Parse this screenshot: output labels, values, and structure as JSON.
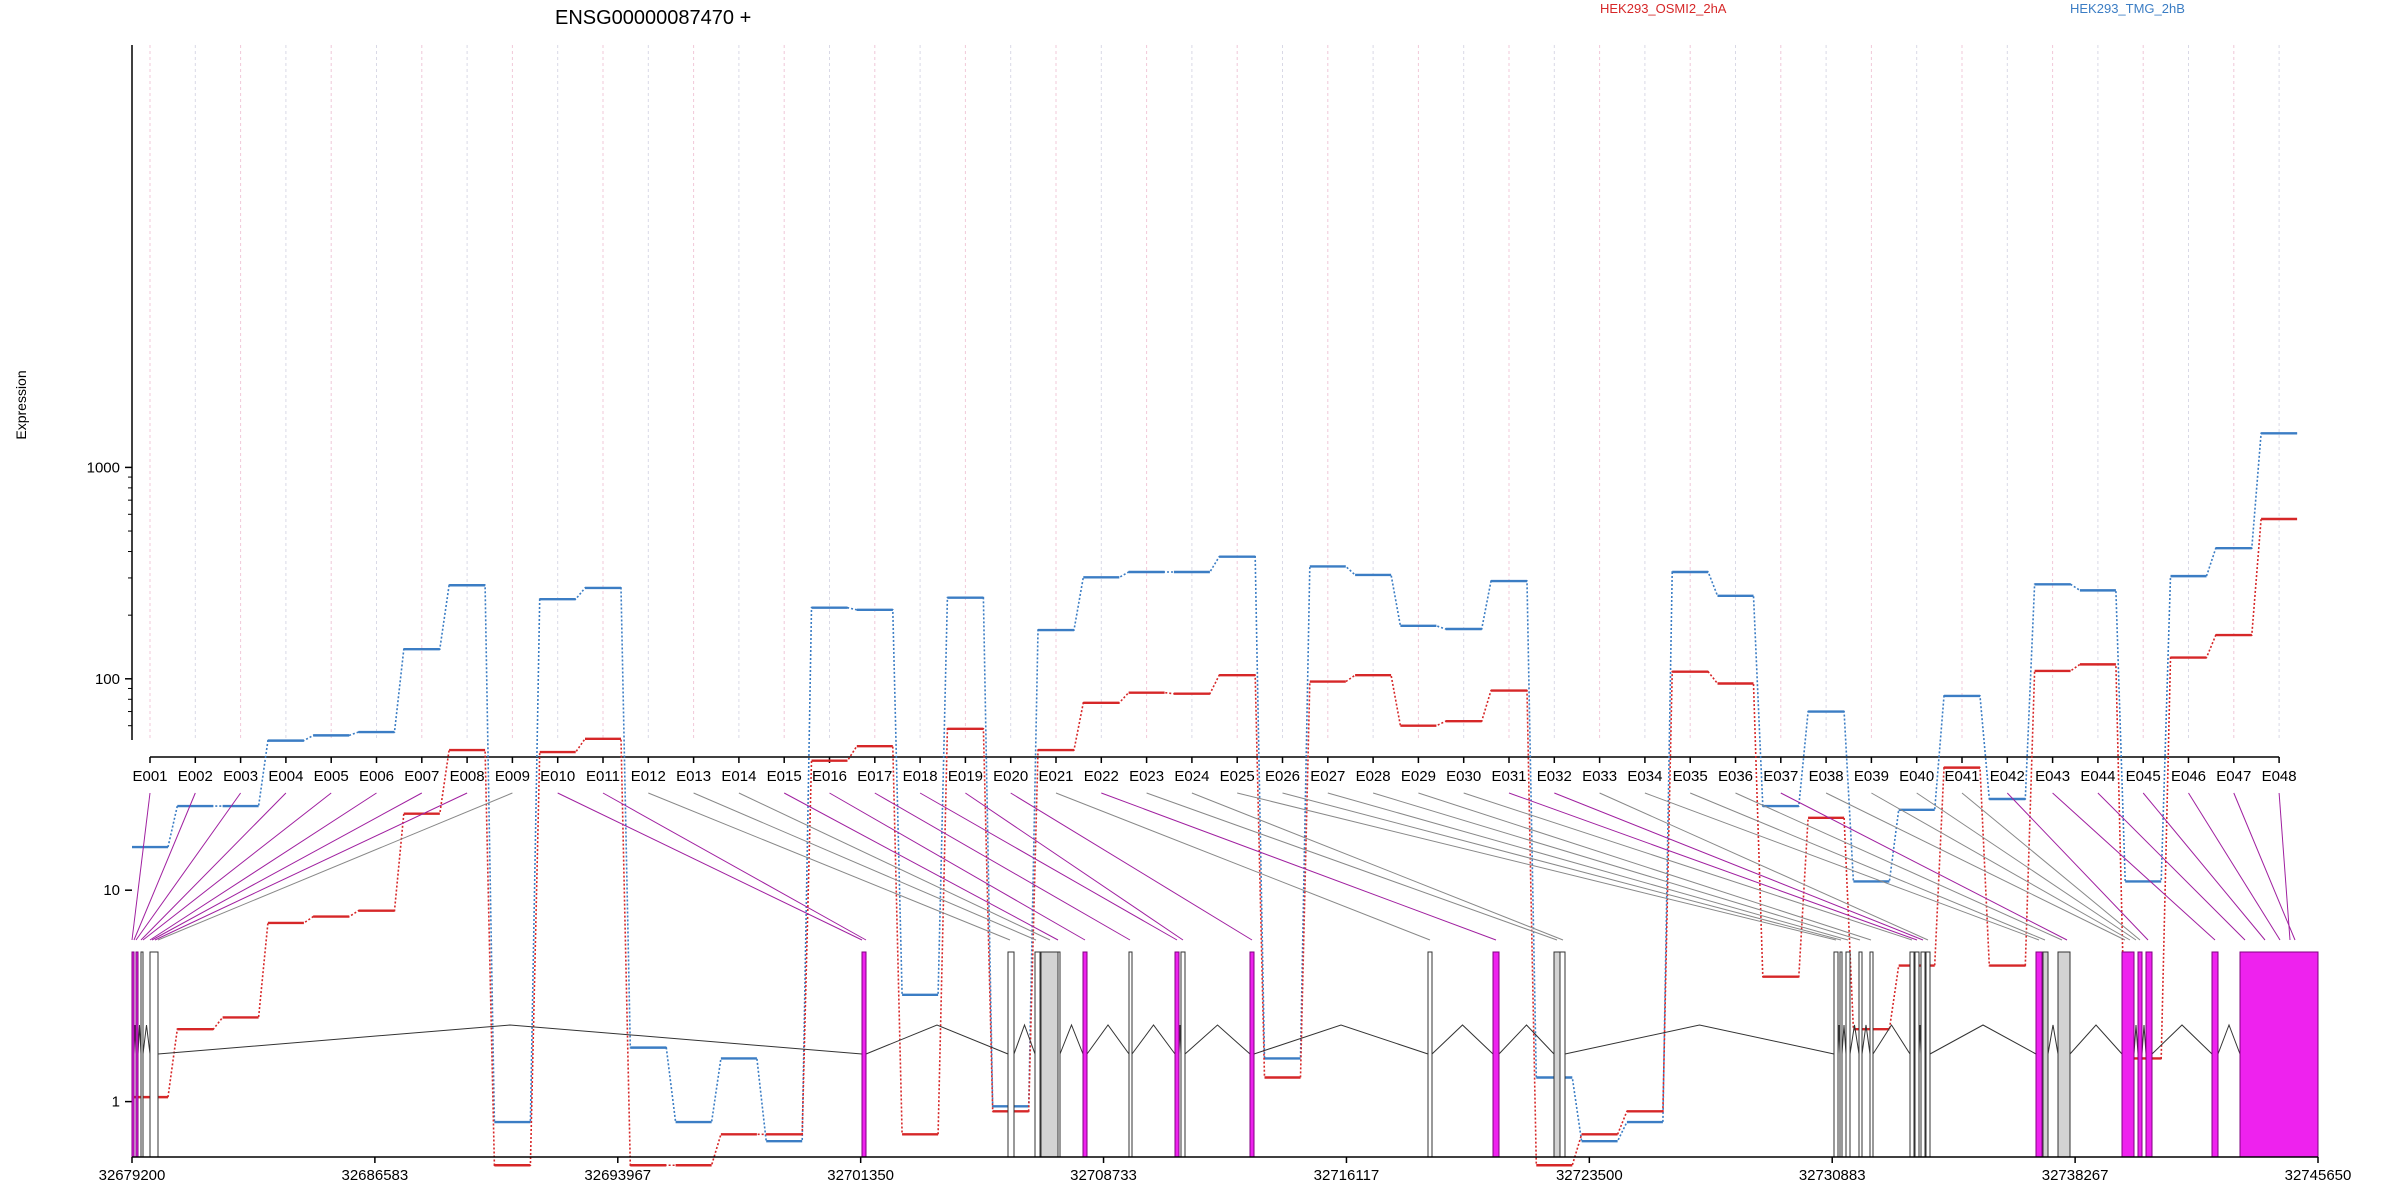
{
  "title": "ENSG00000087470 +",
  "legend": [
    {
      "name": "HEK293_OSMI2_2hA",
      "color": "#d62728"
    },
    {
      "name": "HEK293_TMG_2hB",
      "color": "#3b7dc4"
    }
  ],
  "ylabel": "Expression",
  "colors": {
    "tmg": "#3b7dc4",
    "osmi": "#d62728",
    "exon_highlight": "#ee22ee",
    "exon_normal": "#ffffff",
    "exon_shaded": "#d3d3d3",
    "guide_gray": "#888888"
  },
  "chart_data": {
    "type": "line",
    "scale": "log",
    "ylim": [
      0.5,
      2000
    ],
    "yticks": [
      1,
      10,
      100,
      1000
    ],
    "categories": [
      "E001",
      "E002",
      "E003",
      "E004",
      "E005",
      "E006",
      "E007",
      "E008",
      "E009",
      "E010",
      "E011",
      "E012",
      "E013",
      "E014",
      "E015",
      "E016",
      "E017",
      "E018",
      "E019",
      "E020",
      "E021",
      "E022",
      "E023",
      "E024",
      "E025",
      "E026",
      "E027",
      "E028",
      "E029",
      "E030",
      "E031",
      "E032",
      "E033",
      "E034",
      "E035",
      "E036",
      "E037",
      "E038",
      "E039",
      "E040",
      "E041",
      "E042",
      "E043",
      "E044",
      "E045",
      "E046",
      "E047",
      "E048"
    ],
    "series": [
      {
        "name": "HEK293_TMG_2hB",
        "values": [
          16,
          25,
          25,
          51,
          54,
          56,
          138,
          277,
          0.8,
          238,
          269,
          1.8,
          0.8,
          1.6,
          0.65,
          217,
          212,
          3.2,
          242,
          0.95,
          170,
          302,
          320,
          320,
          378,
          1.6,
          340,
          310,
          178,
          172,
          290,
          1.3,
          0.65,
          0.8,
          320,
          247,
          25,
          70,
          11,
          24,
          83,
          27,
          280,
          262,
          11,
          306,
          415,
          1450
        ]
      },
      {
        "name": "HEK293_OSMI2_2hA",
        "values": [
          1.05,
          2.2,
          2.5,
          7,
          7.5,
          8,
          23,
          46,
          0.5,
          45,
          52,
          0.5,
          0.5,
          0.7,
          0.7,
          41,
          48,
          0.7,
          58,
          0.9,
          46,
          77,
          86,
          85,
          104,
          1.3,
          97,
          104,
          60,
          63,
          88,
          0.5,
          0.7,
          0.9,
          108,
          95,
          3.9,
          22,
          2.2,
          4.4,
          38,
          4.4,
          109,
          117,
          1.6,
          126,
          161,
          570
        ]
      }
    ],
    "genome": {
      "xlim": [
        32679200,
        32745650
      ],
      "ticks": [
        32679200,
        32686583,
        32693967,
        32701350,
        32708733,
        32716117,
        32723500,
        32730883,
        32738267,
        32745650
      ]
    }
  }
}
